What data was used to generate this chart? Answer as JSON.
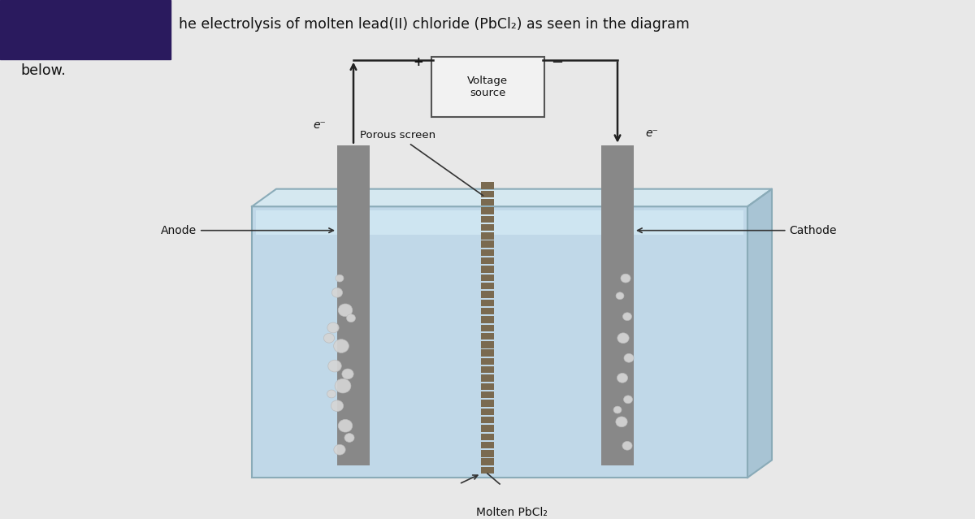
{
  "bg_color": "#e8e8e8",
  "title_text": "he electrolysis of molten lead(II) chloride (PbCl₂) as seen in the diagram",
  "subtitle": "below.",
  "tank_face_color": "#c0d8e8",
  "tank_top_color": "#d5e8f0",
  "tank_right_color": "#a8c4d4",
  "tank_edge_color": "#8aabb8",
  "electrode_color": "#888888",
  "screen_color": "#7a6a50",
  "wire_color": "#222222",
  "bubble_color_light": "#d8d8d8",
  "vs_box_color": "#f2f2f2",
  "vs_box_edge": "#555555",
  "anode_label": "Anode",
  "cathode_label": "Cathode",
  "voltage_label": "Voltage\nsource",
  "porous_label": "Porous screen",
  "molten_label": "Molten PbCl₂",
  "e_left": "e⁻",
  "e_right": "e⁻",
  "plus_sign": "+",
  "minus_sign": "−",
  "marker_color": "#2a1a5e"
}
